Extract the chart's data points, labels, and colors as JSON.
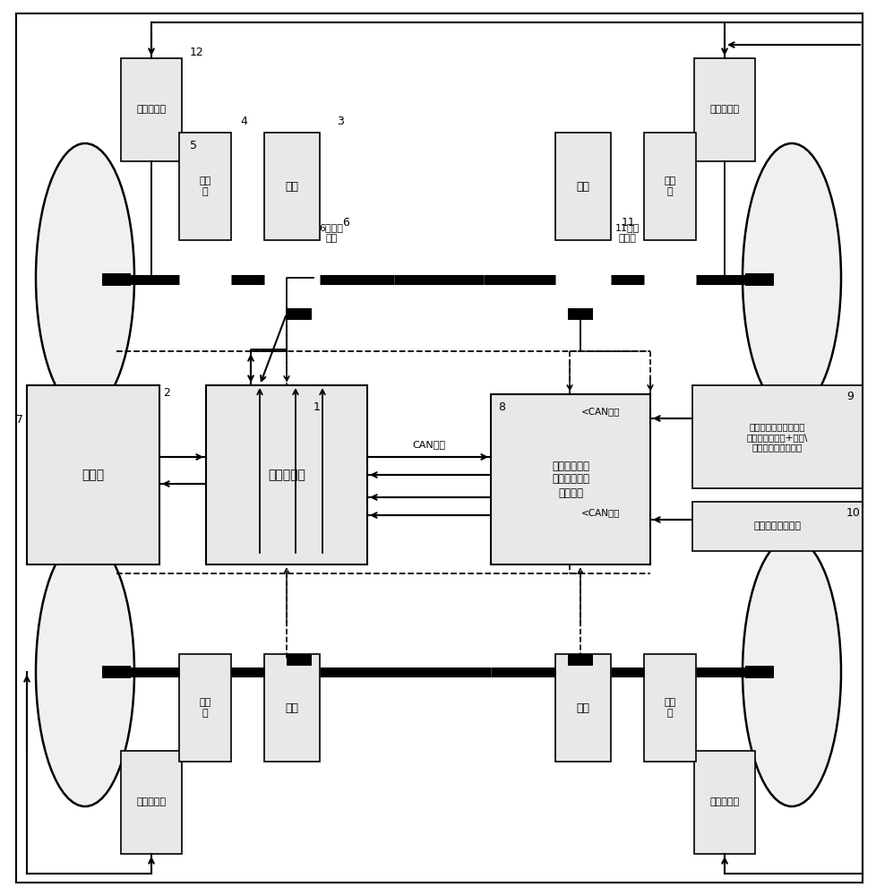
{
  "bg_color": "#ffffff",
  "figsize": [
    9.79,
    10.0
  ],
  "dpi": 100,
  "labels": {
    "hydraulic_brake": "液压制动器",
    "transmission": "变速\n器",
    "motor": "电机",
    "battery": "电池包",
    "motor_controller": "电机控制器",
    "active_safety": "集成液压调节\n单元的主动安\n全控制器",
    "yaw_sensor": "偏航率传感器模组（横\n摇角速度传感器+纵向\\\n侧向加速度传感器）",
    "steering_sensor": "方向盘转角传感器",
    "resolver": "6旋变传\n感器",
    "wheel_speed": "11轮速\n传感器",
    "can_signal": "CAN信号",
    "n1": "1",
    "n2": "2",
    "n3": "3",
    "n4": "4",
    "n5": "5",
    "n6": "6",
    "n7": "7",
    "n8": "8",
    "n9": "9",
    "n10": "10",
    "n11": "11",
    "n12": "12"
  }
}
